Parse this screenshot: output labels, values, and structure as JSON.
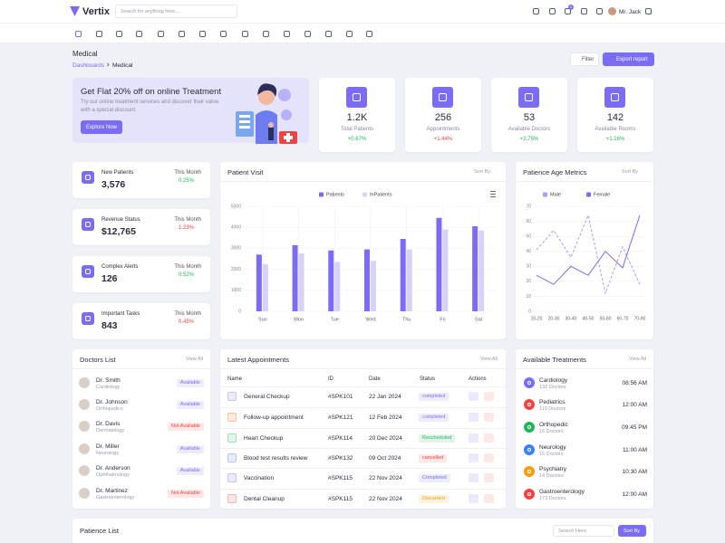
{
  "header": {
    "brand": "Vertix",
    "search_placeholder": "Search for anything here...",
    "cart_badge": "5",
    "user": "Mr. Jack"
  },
  "page": {
    "title": "Medical",
    "breadcrumb": [
      "Dashboards",
      "Medical"
    ],
    "filter": "Filter",
    "export": "Export report"
  },
  "promo": {
    "title": "Get Flat 20% off on online Treatment",
    "text": "Try our online treatment services and discover their value with a special discount.",
    "button": "Explore Now"
  },
  "stats": [
    {
      "value": "1.2K",
      "label": "Total Patients",
      "change": "+0.67%",
      "change_color": "#22b55e"
    },
    {
      "value": "256",
      "label": "Appointments",
      "change": "+1.44%",
      "change_color": "#ef4444"
    },
    {
      "value": "53",
      "label": "Available Doctors",
      "change": "+2.75%",
      "change_color": "#22b55e"
    },
    {
      "value": "142",
      "label": "Available Rooms",
      "change": "+1.16%",
      "change_color": "#22b55e"
    }
  ],
  "mini_cards": [
    {
      "label": "New Patients",
      "value": "3,576",
      "period": "This Month",
      "change": "0.25%",
      "change_color": "#22b55e"
    },
    {
      "label": "Revenue Status",
      "value": "$12,765",
      "period": "This Month",
      "change": "1.23%",
      "change_color": "#ef4444"
    },
    {
      "label": "Complex Alerts",
      "value": "126",
      "period": "This Month",
      "change": "0.52%",
      "change_color": "#22b55e"
    },
    {
      "label": "Important Tasks",
      "value": "843",
      "period": "This Month",
      "change": "0.45%",
      "change_color": "#ef4444"
    }
  ],
  "chart_data": [
    {
      "type": "bar",
      "title": "Patient Visit",
      "sort": "Sort By",
      "categories": [
        "Sun",
        "Mon",
        "Tue",
        "Wed",
        "Thu",
        "Fri",
        "Sat"
      ],
      "series": [
        {
          "name": "Patients",
          "color": "#7b6cf6",
          "values": [
            2700,
            3150,
            2900,
            2950,
            3450,
            4450,
            4050
          ]
        },
        {
          "name": "InPatients",
          "color": "#d8d2fb",
          "values": [
            2250,
            2750,
            2350,
            2400,
            2950,
            3900,
            3850
          ]
        }
      ],
      "ylim": [
        0,
        5000
      ],
      "yticks": [
        0,
        1000,
        2000,
        3000,
        4000,
        5000
      ],
      "grid": true
    },
    {
      "type": "line",
      "title": "Patience Age Metrics",
      "sort": "Sort By",
      "categories": [
        "10-20",
        "20-30",
        "30-40",
        "40-50",
        "50-60",
        "60-70",
        "70-80"
      ],
      "series": [
        {
          "name": "Male",
          "color": "#a89ef8",
          "dashed": true,
          "values": [
            41,
            54,
            36,
            64,
            12,
            43,
            18
          ]
        },
        {
          "name": "Female",
          "color": "#7b6cf6",
          "dashed": false,
          "values": [
            24,
            18,
            30,
            24,
            40,
            29,
            64
          ]
        }
      ],
      "ylim": [
        0,
        70
      ],
      "yticks": [
        0,
        10,
        20,
        30,
        40,
        50,
        60,
        70
      ],
      "grid": true
    }
  ],
  "doctors": {
    "title": "Doctors List",
    "view_all": "View All",
    "items": [
      {
        "name": "Dr. Smith",
        "dept": "Cardiology",
        "status": "Available",
        "status_color": "#7b6cf6"
      },
      {
        "name": "Dr. Johnson",
        "dept": "Orthopedics",
        "status": "Available",
        "status_color": "#7b6cf6"
      },
      {
        "name": "Dr. Davis",
        "dept": "Dermatology",
        "status": "Not Available",
        "status_color": "#ef4444"
      },
      {
        "name": "Dr. Miller",
        "dept": "Neurology",
        "status": "Available",
        "status_color": "#7b6cf6"
      },
      {
        "name": "Dr. Anderson",
        "dept": "Ophthalmology",
        "status": "Available",
        "status_color": "#7b6cf6"
      },
      {
        "name": "Dr. Martinez",
        "dept": "Gastroenterology",
        "status": "Not Available",
        "status_color": "#ef4444"
      }
    ]
  },
  "appointments": {
    "title": "Latest Appointments",
    "view_all": "View All",
    "columns": [
      "Name",
      "ID",
      "Date",
      "Status",
      "Actions"
    ],
    "rows": [
      {
        "name": "General Checkup",
        "id": "#SPK101",
        "date": "22 Jan 2024",
        "status": "completed",
        "status_color": "#7b6cf6",
        "icon_color": "#7b6cf6"
      },
      {
        "name": "Follow-up appointment",
        "id": "#SPK121",
        "date": "12 Feb 2024",
        "status": "completed",
        "status_color": "#7b6cf6",
        "icon_color": "#f97316"
      },
      {
        "name": "Heart Checkup",
        "id": "#SPK114",
        "date": "20 Dec 2024",
        "status": "Rescheduled",
        "status_color": "#22b55e",
        "icon_color": "#22b55e"
      },
      {
        "name": "Blood test results review",
        "id": "#SPK132",
        "date": "09 Oct 2024",
        "status": "cancelled",
        "status_color": "#ef4444",
        "icon_color": "#3b82f6"
      },
      {
        "name": "Vaccination",
        "id": "#SPK115",
        "date": "22 Nov 2024",
        "status": "Completed",
        "status_color": "#7b6cf6",
        "icon_color": "#7b6cf6"
      },
      {
        "name": "Dental Cleanup",
        "id": "#SPK115",
        "date": "22 Nov 2024",
        "status": "Discarded",
        "status_color": "#f59e0b",
        "icon_color": "#ef4444"
      }
    ]
  },
  "treatments": {
    "title": "Available Treatments",
    "view_all": "View All",
    "items": [
      {
        "name": "Cardiology",
        "doctors": "132 Doctors",
        "time": "08:56 AM",
        "color": "#7b6cf6"
      },
      {
        "name": "Pediatrics",
        "doctors": "110 Doctors",
        "time": "12:00 AM",
        "color": "#ef4444"
      },
      {
        "name": "Orthopedic",
        "doctors": "16 Doctors",
        "time": "09:45 PM",
        "color": "#22b55e"
      },
      {
        "name": "Neurology",
        "doctors": "16 Doctors",
        "time": "11:00 AM",
        "color": "#3b82f6"
      },
      {
        "name": "Psychiatry",
        "doctors": "14 Doctors",
        "time": "10:30 AM",
        "color": "#f59e0b"
      },
      {
        "name": "Gastroenterology",
        "doctors": "173 Doctors",
        "time": "12:00 AM",
        "color": "#ef4444"
      }
    ]
  },
  "patients": {
    "title": "Patience List",
    "search_placeholder": "Search Here",
    "sort": "Sort By"
  }
}
